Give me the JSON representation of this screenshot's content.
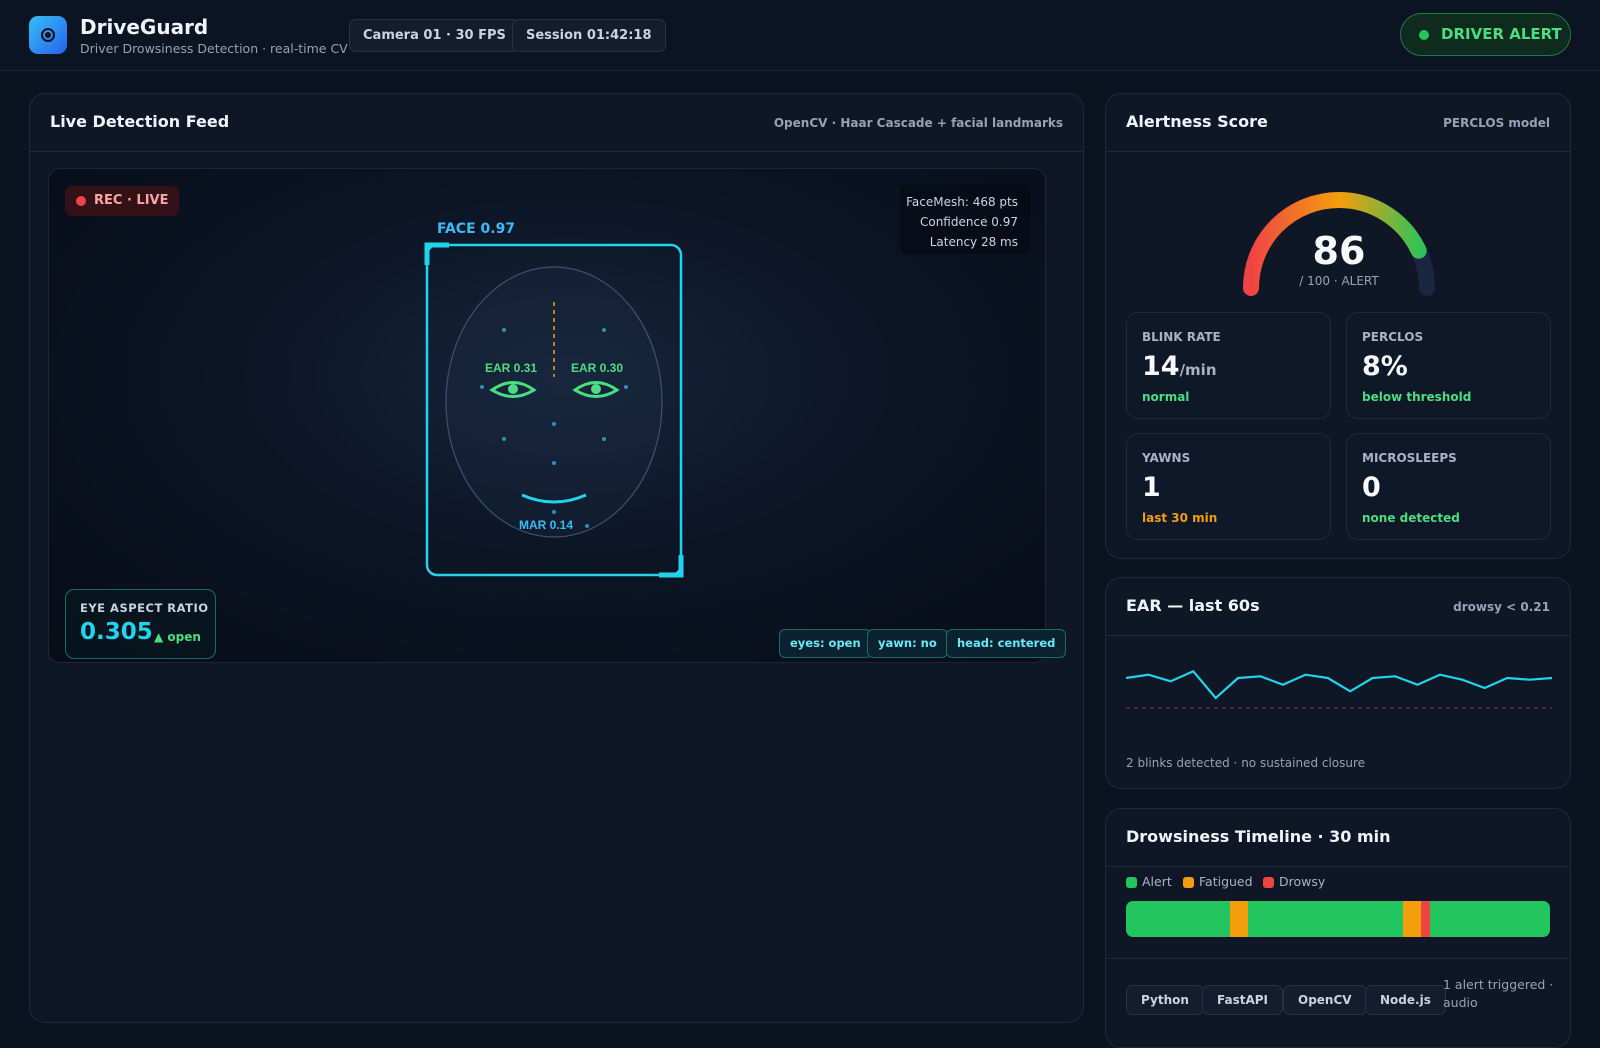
{
  "app": {
    "title": "DriveGuard",
    "subtitle": "Driver Drowsiness Detection · real-time CV",
    "camera_chip": "Camera 01 · 30 FPS",
    "session_chip": "Session 01:42:18",
    "status_pill": "DRIVER ALERT",
    "logo_icon": "camera-lens-icon"
  },
  "feed": {
    "title": "Live Detection Feed",
    "meta": "OpenCV · Haar Cascade + facial landmarks",
    "rec_label": "REC · LIVE",
    "mesh_lines": [
      "FaceMesh: 468 pts",
      "Confidence 0.97",
      "Latency 28 ms"
    ],
    "face_label": "FACE 0.97",
    "left_eye_label": "EAR 0.31",
    "right_eye_label": "EAR 0.30",
    "mouth_label": "MAR 0.14",
    "ear_panel": {
      "label": "EYE ASPECT RATIO",
      "value": "0.305",
      "trend": "▲ open"
    },
    "tags": [
      "eyes: open",
      "yawn: no",
      "head: centered"
    ]
  },
  "alertness": {
    "title": "Alertness Score",
    "meta": "PERCLOS model",
    "score": "86",
    "score_fraction": 0.86,
    "score_sub": "/ 100 · ALERT",
    "stats": [
      {
        "label": "BLINK RATE",
        "value": "14",
        "unit": "/min",
        "note": "normal",
        "note_color": "#4ade80"
      },
      {
        "label": "PERCLOS",
        "value": "8%",
        "unit": "",
        "note": "below threshold",
        "note_color": "#4ade80"
      },
      {
        "label": "YAWNS",
        "value": "1",
        "unit": "",
        "note": "last 30 min",
        "note_color": "#f59e0b"
      },
      {
        "label": "MICROSLEEPS",
        "value": "0",
        "unit": "",
        "note": "none detected",
        "note_color": "#4ade80"
      }
    ]
  },
  "ear_chart": {
    "title": "EAR — last 60s",
    "meta": "drowsy < 0.21",
    "footer": "2 blinks detected · no sustained closure",
    "line_color": "#22d3ee",
    "threshold_color": "#ef4444"
  },
  "chart_data": {
    "type": "line",
    "threshold": 0.21,
    "ylim": [
      0.15,
      0.36
    ],
    "values": [
      0.3,
      0.31,
      0.29,
      0.32,
      0.24,
      0.3,
      0.305,
      0.28,
      0.31,
      0.3,
      0.26,
      0.3,
      0.305,
      0.28,
      0.31,
      0.295,
      0.27,
      0.3,
      0.295,
      0.3
    ]
  },
  "timeline": {
    "title": "Drowsiness Timeline · 30 min",
    "legend": [
      {
        "label": "Alert",
        "color": "#22c55e"
      },
      {
        "label": "Fatigued",
        "color": "#f59e0b"
      },
      {
        "label": "Drowsy",
        "color": "#ef4444"
      }
    ],
    "segments": [
      {
        "state": "Fatigued",
        "start": 0.245,
        "end": 0.287
      },
      {
        "state": "Fatigued",
        "start": 0.653,
        "end": 0.695
      },
      {
        "state": "Drowsy",
        "start": 0.695,
        "end": 0.716
      }
    ],
    "buttons": [
      "Python",
      "FastAPI",
      "OpenCV",
      "Node.js"
    ],
    "note": "1 alert triggered · audio"
  }
}
